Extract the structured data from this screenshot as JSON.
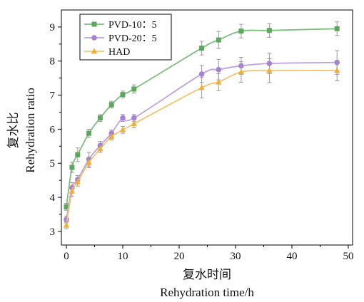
{
  "chart_data": {
    "type": "line",
    "xlabel_cn": "复水时间",
    "xlabel_en": "Rehydration time/h",
    "ylabel_cn": "复水比",
    "ylabel_en": "Rehydration ratio",
    "xlim": [
      0,
      50
    ],
    "ylim": [
      2.6,
      9.5
    ],
    "xticks": [
      0,
      10,
      20,
      30,
      40,
      50
    ],
    "yticks": [
      3,
      4,
      5,
      6,
      7,
      8,
      9
    ],
    "legend_position": "top-left",
    "x": [
      0,
      1,
      2,
      4,
      6,
      8,
      10,
      12,
      24,
      27,
      31,
      36,
      48
    ],
    "series": [
      {
        "name": "PVD-10：5",
        "marker": "square",
        "color": "#7cbf7a",
        "marker_color": "#5aa85a",
        "values": [
          3.72,
          4.88,
          5.25,
          5.88,
          6.33,
          6.72,
          7.02,
          7.18,
          8.38,
          8.62,
          8.88,
          8.9,
          8.95
        ],
        "errors": [
          0.1,
          0.15,
          0.2,
          0.12,
          0.1,
          0.1,
          0.1,
          0.12,
          0.2,
          0.25,
          0.2,
          0.2,
          0.2
        ]
      },
      {
        "name": "PVD-20：5",
        "marker": "circle",
        "color": "#c0a0e0",
        "marker_color": "#a87fd6",
        "values": [
          3.35,
          4.28,
          4.52,
          5.12,
          5.52,
          5.88,
          6.33,
          6.33,
          7.62,
          7.75,
          7.86,
          7.93,
          7.96
        ],
        "errors": [
          0.1,
          0.15,
          0.12,
          0.2,
          0.12,
          0.1,
          0.1,
          0.1,
          0.25,
          0.3,
          0.25,
          0.3,
          0.35
        ]
      },
      {
        "name": "HAD",
        "marker": "triangle",
        "color": "#f2c56f",
        "marker_color": "#f0ad3a",
        "values": [
          3.18,
          4.18,
          4.45,
          5.02,
          5.42,
          5.78,
          5.98,
          6.16,
          7.22,
          7.38,
          7.68,
          7.72,
          7.72
        ],
        "errors": [
          0.1,
          0.15,
          0.12,
          0.15,
          0.1,
          0.1,
          0.1,
          0.12,
          0.3,
          0.25,
          0.3,
          0.35,
          0.3
        ]
      }
    ]
  }
}
